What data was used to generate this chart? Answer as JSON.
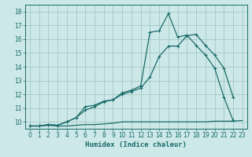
{
  "xlabel": "Humidex (Indice chaleur)",
  "bg_color": "#cde8e8",
  "line_color": "#1a6b6b",
  "grid_color": "#aacccc",
  "xlim": [
    -0.5,
    23.5
  ],
  "ylim": [
    9.5,
    18.5
  ],
  "xticks": [
    0,
    1,
    2,
    3,
    4,
    5,
    6,
    7,
    8,
    9,
    10,
    11,
    12,
    13,
    14,
    15,
    16,
    17,
    18,
    19,
    20,
    21,
    22,
    23
  ],
  "yticks": [
    10,
    11,
    12,
    13,
    14,
    15,
    16,
    17,
    18
  ],
  "line1_x": [
    0,
    1,
    2,
    3,
    4,
    5,
    6,
    7,
    8,
    9,
    10,
    11,
    12,
    13,
    14,
    15,
    16,
    17,
    18,
    19,
    20,
    21,
    22,
    23
  ],
  "line1_y": [
    9.7,
    9.7,
    9.75,
    9.7,
    9.7,
    9.75,
    9.8,
    9.8,
    9.85,
    9.9,
    10.0,
    10.0,
    10.0,
    10.0,
    10.0,
    10.0,
    10.0,
    10.0,
    10.0,
    10.0,
    10.05,
    10.05,
    10.05,
    10.1
  ],
  "line2_x": [
    0,
    1,
    2,
    3,
    4,
    5,
    6,
    7,
    8,
    9,
    10,
    11,
    12,
    13,
    14,
    15,
    16,
    17,
    18,
    19,
    20,
    21,
    22
  ],
  "line2_y": [
    9.7,
    9.7,
    9.8,
    9.75,
    10.0,
    10.3,
    10.85,
    11.1,
    11.45,
    11.6,
    12.0,
    12.2,
    12.45,
    13.25,
    14.75,
    15.5,
    15.5,
    16.25,
    16.35,
    15.55,
    14.85,
    13.9,
    11.8
  ],
  "line3_x": [
    0,
    1,
    2,
    3,
    4,
    5,
    6,
    7,
    8,
    9,
    10,
    11,
    12,
    13,
    14,
    15,
    16,
    17,
    18,
    19,
    20,
    21,
    22
  ],
  "line3_y": [
    9.7,
    9.7,
    9.8,
    9.75,
    10.0,
    10.3,
    11.1,
    11.2,
    11.5,
    11.6,
    12.1,
    12.3,
    12.6,
    16.5,
    16.6,
    17.85,
    16.15,
    16.3,
    15.55,
    14.85,
    13.9,
    11.8,
    10.1
  ]
}
